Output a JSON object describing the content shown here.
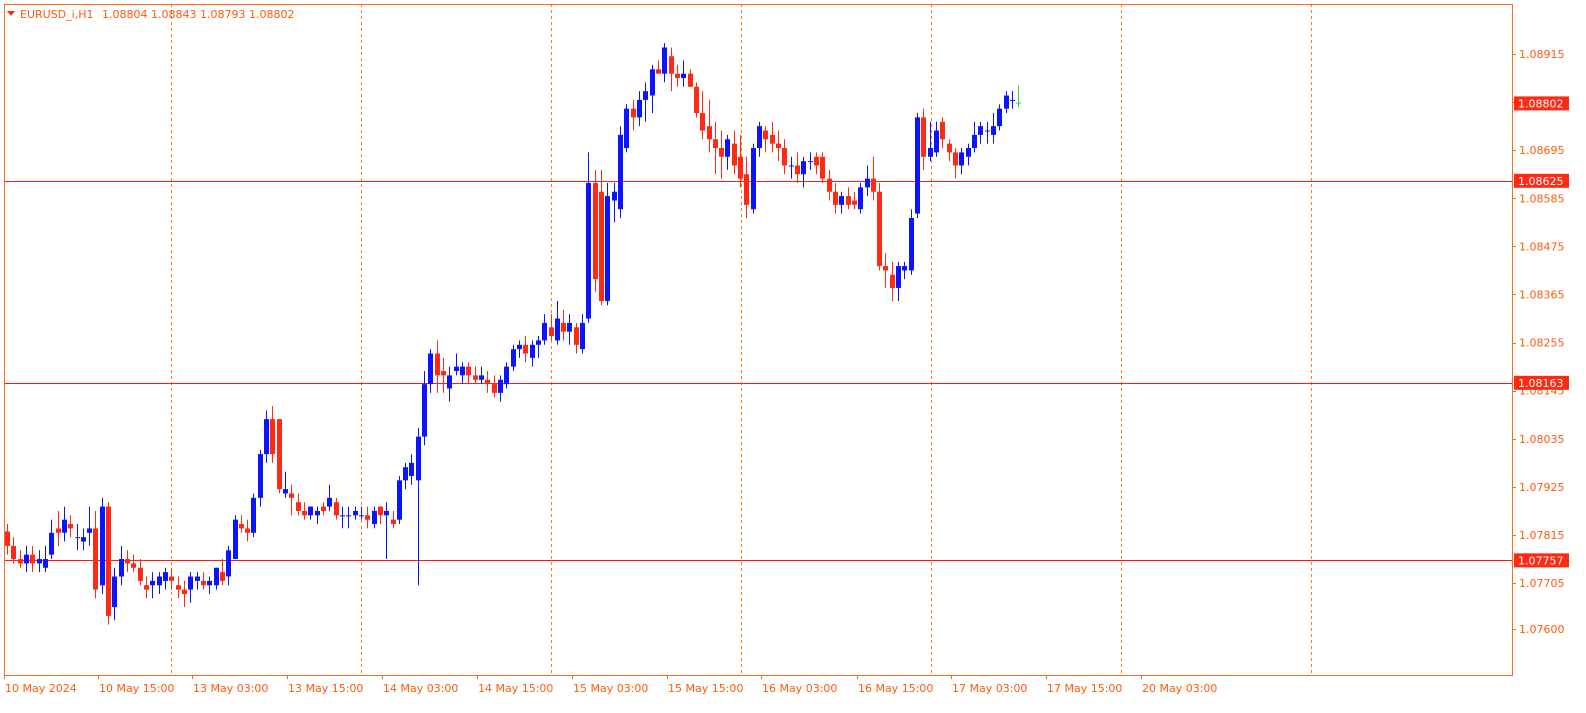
{
  "header": {
    "symbol": "EURUSD_i,H1",
    "ohlc": "1.08804 1.08843 1.08793 1.08802"
  },
  "colors": {
    "frame": "#ff6a1a",
    "bull": "#0a14ff",
    "bear": "#ff2a14",
    "current_bull": "#3ad33a",
    "hline": "#ff1a1a",
    "vgrid": "#ff7b1a",
    "label_text": "#ff5a0a",
    "badge_bg": "#ff2a14",
    "badge_text": "#ffffff",
    "background": "#ffffff"
  },
  "chart_data": {
    "type": "candlestick",
    "symbol": "EURUSD_i",
    "timeframe": "H1",
    "ylim": [
      1.0753,
      1.0899
    ],
    "yticks": [
      "1.08915",
      "1.08805",
      "1.08695",
      "1.08585",
      "1.08475",
      "1.08365",
      "1.08255",
      "1.08145",
      "1.08035",
      "1.07925",
      "1.07815",
      "1.07705",
      "1.07600"
    ],
    "xticks": [
      "10 May 2024",
      "10 May 15:00",
      "13 May 03:00",
      "13 May 15:00",
      "14 May 03:00",
      "14 May 15:00",
      "15 May 03:00",
      "15 May 15:00",
      "16 May 03:00",
      "16 May 15:00",
      "17 May 03:00",
      "17 May 15:00",
      "20 May 03:00"
    ],
    "horizontal_lines": [
      {
        "price": 1.08625,
        "label": "1.08625"
      },
      {
        "price": 1.08163,
        "label": "1.08163"
      },
      {
        "price": 1.07757,
        "label": "1.07757"
      }
    ],
    "current_price": {
      "price": 1.08802,
      "label": "1.08802"
    },
    "candles": [
      [
        1.07823,
        1.0784,
        1.0777,
        1.0779
      ],
      [
        1.0779,
        1.0781,
        1.0775,
        1.0776
      ],
      [
        1.0776,
        1.0778,
        1.0774,
        1.0775
      ],
      [
        1.0775,
        1.0779,
        1.0773,
        1.0777
      ],
      [
        1.0777,
        1.0779,
        1.0773,
        1.0775
      ],
      [
        1.0775,
        1.0778,
        1.0773,
        1.0776
      ],
      [
        1.0774,
        1.0779,
        1.0773,
        1.0776
      ],
      [
        1.0777,
        1.0785,
        1.0776,
        1.0782
      ],
      [
        1.0783,
        1.0787,
        1.0779,
        1.0782
      ],
      [
        1.0782,
        1.0788,
        1.078,
        1.0785
      ],
      [
        1.0784,
        1.0786,
        1.0781,
        1.0783
      ],
      [
        1.0781,
        1.0784,
        1.0778,
        1.0781
      ],
      [
        1.078,
        1.0783,
        1.0778,
        1.0781
      ],
      [
        1.0782,
        1.0788,
        1.0779,
        1.0783
      ],
      [
        1.0783,
        1.0787,
        1.0767,
        1.0769
      ],
      [
        1.077,
        1.079,
        1.0768,
        1.0788
      ],
      [
        1.0788,
        1.0789,
        1.0761,
        1.0763
      ],
      [
        1.0765,
        1.0774,
        1.0762,
        1.0772
      ],
      [
        1.0772,
        1.0779,
        1.077,
        1.0776
      ],
      [
        1.0776,
        1.0778,
        1.0773,
        1.0775
      ],
      [
        1.0775,
        1.0777,
        1.0773,
        1.0774
      ],
      [
        1.0774,
        1.0776,
        1.077,
        1.0771
      ],
      [
        1.077,
        1.0772,
        1.0767,
        1.0769
      ],
      [
        1.077,
        1.0773,
        1.0767,
        1.0771
      ],
      [
        1.077,
        1.0773,
        1.0768,
        1.0772
      ],
      [
        1.0771,
        1.0774,
        1.0769,
        1.0773
      ],
      [
        1.0772,
        1.0774,
        1.0769,
        1.0771
      ],
      [
        1.077,
        1.0772,
        1.0767,
        1.0769
      ],
      [
        1.0769,
        1.0771,
        1.0765,
        1.0768
      ],
      [
        1.0769,
        1.0773,
        1.0766,
        1.0772
      ],
      [
        1.0771,
        1.0773,
        1.0769,
        1.0772
      ],
      [
        1.0771,
        1.0773,
        1.0769,
        1.077
      ],
      [
        1.077,
        1.0772,
        1.0768,
        1.0771
      ],
      [
        1.077,
        1.0774,
        1.0769,
        1.0774
      ],
      [
        1.0773,
        1.0776,
        1.077,
        1.0771
      ],
      [
        1.0772,
        1.0779,
        1.077,
        1.0778
      ],
      [
        1.0776,
        1.0786,
        1.0776,
        1.0785
      ],
      [
        1.0784,
        1.0786,
        1.0782,
        1.0783
      ],
      [
        1.0783,
        1.0785,
        1.078,
        1.0782
      ],
      [
        1.0782,
        1.0791,
        1.0781,
        1.079
      ],
      [
        1.079,
        1.0801,
        1.0788,
        1.08
      ],
      [
        1.08,
        1.081,
        1.0798,
        1.0808
      ],
      [
        1.0808,
        1.0811,
        1.0798,
        1.08
      ],
      [
        1.0808,
        1.0808,
        1.0791,
        1.0792
      ],
      [
        1.0791,
        1.0796,
        1.079,
        1.0792
      ],
      [
        1.0791,
        1.0793,
        1.0786,
        1.079
      ],
      [
        1.0789,
        1.0791,
        1.0786,
        1.0787
      ],
      [
        1.0787,
        1.0789,
        1.0785,
        1.0786
      ],
      [
        1.0786,
        1.0788,
        1.0785,
        1.0788
      ],
      [
        1.0786,
        1.0788,
        1.0784,
        1.0787
      ],
      [
        1.0788,
        1.0789,
        1.0786,
        1.0787
      ],
      [
        1.0788,
        1.0793,
        1.0787,
        1.079
      ],
      [
        1.0789,
        1.079,
        1.0785,
        1.0786
      ],
      [
        1.0786,
        1.0788,
        1.0783,
        1.0786
      ],
      [
        1.0786,
        1.0788,
        1.0783,
        1.0786
      ],
      [
        1.0786,
        1.0788,
        1.0785,
        1.0787
      ],
      [
        1.0786,
        1.0788,
        1.0785,
        1.0786
      ],
      [
        1.0786,
        1.0788,
        1.0783,
        1.0785
      ],
      [
        1.0784,
        1.0788,
        1.0783,
        1.0787
      ],
      [
        1.0788,
        1.0788,
        1.0784,
        1.0786
      ],
      [
        1.0786,
        1.0789,
        1.0776,
        1.0787
      ],
      [
        1.0785,
        1.0787,
        1.0783,
        1.0784
      ],
      [
        1.0785,
        1.0795,
        1.0784,
        1.0794
      ],
      [
        1.0794,
        1.0798,
        1.0792,
        1.0797
      ],
      [
        1.0795,
        1.08,
        1.0793,
        1.0798
      ],
      [
        1.0794,
        1.0806,
        1.077,
        1.0804
      ],
      [
        1.0804,
        1.0819,
        1.0802,
        1.0816
      ],
      [
        1.0816,
        1.0824,
        1.0814,
        1.0823
      ],
      [
        1.0823,
        1.0826,
        1.0814,
        1.0818
      ],
      [
        1.0819,
        1.0822,
        1.0814,
        1.0818
      ],
      [
        1.0815,
        1.082,
        1.0812,
        1.0818
      ],
      [
        1.0819,
        1.0823,
        1.0818,
        1.082
      ],
      [
        1.0818,
        1.0821,
        1.0816,
        1.082
      ],
      [
        1.082,
        1.0821,
        1.0816,
        1.0818
      ],
      [
        1.0818,
        1.082,
        1.0816,
        1.0817
      ],
      [
        1.0817,
        1.082,
        1.0816,
        1.0818
      ],
      [
        1.0817,
        1.0819,
        1.0814,
        1.0816
      ],
      [
        1.0816,
        1.0818,
        1.0813,
        1.0814
      ],
      [
        1.0814,
        1.0818,
        1.0812,
        1.0817
      ],
      [
        1.0816,
        1.0821,
        1.0815,
        1.082
      ],
      [
        1.082,
        1.0825,
        1.0819,
        1.0824
      ],
      [
        1.0824,
        1.0826,
        1.0822,
        1.0825
      ],
      [
        1.0825,
        1.0827,
        1.0821,
        1.0823
      ],
      [
        1.0822,
        1.0826,
        1.082,
        1.0825
      ],
      [
        1.0825,
        1.0827,
        1.0822,
        1.0826
      ],
      [
        1.0826,
        1.0832,
        1.0825,
        1.083
      ],
      [
        1.0829,
        1.0832,
        1.0826,
        1.0827
      ],
      [
        1.0826,
        1.0835,
        1.0825,
        1.0831
      ],
      [
        1.083,
        1.0833,
        1.0826,
        1.0828
      ],
      [
        1.0828,
        1.0832,
        1.0825,
        1.083
      ],
      [
        1.0829,
        1.083,
        1.0823,
        1.0825
      ],
      [
        1.0824,
        1.0832,
        1.0823,
        1.083
      ],
      [
        1.0831,
        1.0869,
        1.083,
        1.0862
      ],
      [
        1.0862,
        1.0865,
        1.0837,
        1.084
      ],
      [
        1.086,
        1.0865,
        1.0834,
        1.0835
      ],
      [
        1.0835,
        1.0862,
        1.0834,
        1.0859
      ],
      [
        1.0858,
        1.0862,
        1.0853,
        1.086
      ],
      [
        1.0856,
        1.0875,
        1.0854,
        1.0873
      ],
      [
        1.087,
        1.088,
        1.0869,
        1.0879
      ],
      [
        1.0879,
        1.0881,
        1.0874,
        1.0877
      ],
      [
        1.0877,
        1.0883,
        1.0875,
        1.0881
      ],
      [
        1.0881,
        1.0885,
        1.0876,
        1.0883
      ],
      [
        1.0882,
        1.0889,
        1.0878,
        1.0888
      ],
      [
        1.0888,
        1.089,
        1.0887,
        1.0887
      ],
      [
        1.0887,
        1.0894,
        1.0885,
        1.0893
      ],
      [
        1.0891,
        1.0893,
        1.0883,
        1.0887
      ],
      [
        1.0887,
        1.0889,
        1.0884,
        1.0886
      ],
      [
        1.0886,
        1.089,
        1.0884,
        1.0887
      ],
      [
        1.0887,
        1.0888,
        1.0884,
        1.0884
      ],
      [
        1.0884,
        1.0885,
        1.0877,
        1.0878
      ],
      [
        1.0878,
        1.0883,
        1.0872,
        1.0874
      ],
      [
        1.0875,
        1.0881,
        1.0869,
        1.0872
      ],
      [
        1.0872,
        1.0876,
        1.0864,
        1.087
      ],
      [
        1.087,
        1.0874,
        1.0863,
        1.0868
      ],
      [
        1.0868,
        1.0873,
        1.0865,
        1.0872
      ],
      [
        1.0871,
        1.0874,
        1.0864,
        1.0866
      ],
      [
        1.0868,
        1.0873,
        1.0861,
        1.0863
      ],
      [
        1.0864,
        1.0868,
        1.0854,
        1.0857
      ],
      [
        1.0856,
        1.0871,
        1.0855,
        1.087
      ],
      [
        1.087,
        1.0876,
        1.0868,
        1.0875
      ],
      [
        1.0874,
        1.0875,
        1.0869,
        1.0872
      ],
      [
        1.0873,
        1.0876,
        1.0869,
        1.0871
      ],
      [
        1.0871,
        1.0874,
        1.0867,
        1.087
      ],
      [
        1.087,
        1.0872,
        1.0864,
        1.0866
      ],
      [
        1.0866,
        1.0868,
        1.0863,
        1.0866
      ],
      [
        1.0866,
        1.0869,
        1.0862,
        1.0864
      ],
      [
        1.0864,
        1.0868,
        1.0861,
        1.0867
      ],
      [
        1.0867,
        1.0869,
        1.0865,
        1.0867
      ],
      [
        1.0868,
        1.0869,
        1.0864,
        1.0866
      ],
      [
        1.0868,
        1.0869,
        1.0862,
        1.0863
      ],
      [
        1.0863,
        1.0865,
        1.0858,
        1.086
      ],
      [
        1.086,
        1.0862,
        1.0855,
        1.0857
      ],
      [
        1.0857,
        1.086,
        1.0855,
        1.0859
      ],
      [
        1.0859,
        1.0861,
        1.0856,
        1.0857
      ],
      [
        1.0858,
        1.086,
        1.0856,
        1.0857
      ],
      [
        1.0856,
        1.0862,
        1.0855,
        1.0861
      ],
      [
        1.0861,
        1.0866,
        1.0859,
        1.0863
      ],
      [
        1.0863,
        1.0868,
        1.0858,
        1.086
      ],
      [
        1.086,
        1.0862,
        1.0842,
        1.0843
      ],
      [
        1.0843,
        1.0846,
        1.0838,
        1.0842
      ],
      [
        1.0841,
        1.0844,
        1.0835,
        1.0838
      ],
      [
        1.0838,
        1.0844,
        1.0835,
        1.0843
      ],
      [
        1.0842,
        1.0844,
        1.084,
        1.0843
      ],
      [
        1.0842,
        1.0856,
        1.0841,
        1.0854
      ],
      [
        1.0855,
        1.0878,
        1.0854,
        1.0877
      ],
      [
        1.0877,
        1.0879,
        1.0865,
        1.0868
      ],
      [
        1.0868,
        1.0876,
        1.0867,
        1.087
      ],
      [
        1.0869,
        1.0876,
        1.0868,
        1.0874
      ],
      [
        1.0876,
        1.0877,
        1.087,
        1.0872
      ],
      [
        1.0871,
        1.0872,
        1.0867,
        1.0869
      ],
      [
        1.0869,
        1.087,
        1.0863,
        1.0866
      ],
      [
        1.0866,
        1.087,
        1.0864,
        1.0869
      ],
      [
        1.0868,
        1.0871,
        1.0866,
        1.087
      ],
      [
        1.087,
        1.0876,
        1.0869,
        1.0873
      ],
      [
        1.0873,
        1.0876,
        1.0871,
        1.0875
      ],
      [
        1.0874,
        1.0876,
        1.0871,
        1.0874
      ],
      [
        1.0873,
        1.0878,
        1.0871,
        1.0875
      ],
      [
        1.0875,
        1.088,
        1.0874,
        1.0879
      ],
      [
        1.0879,
        1.0883,
        1.0878,
        1.0882
      ],
      [
        1.0881,
        1.0883,
        1.0879,
        1.0881
      ],
      [
        1.08804,
        1.08843,
        1.08793,
        1.08802
      ]
    ]
  }
}
